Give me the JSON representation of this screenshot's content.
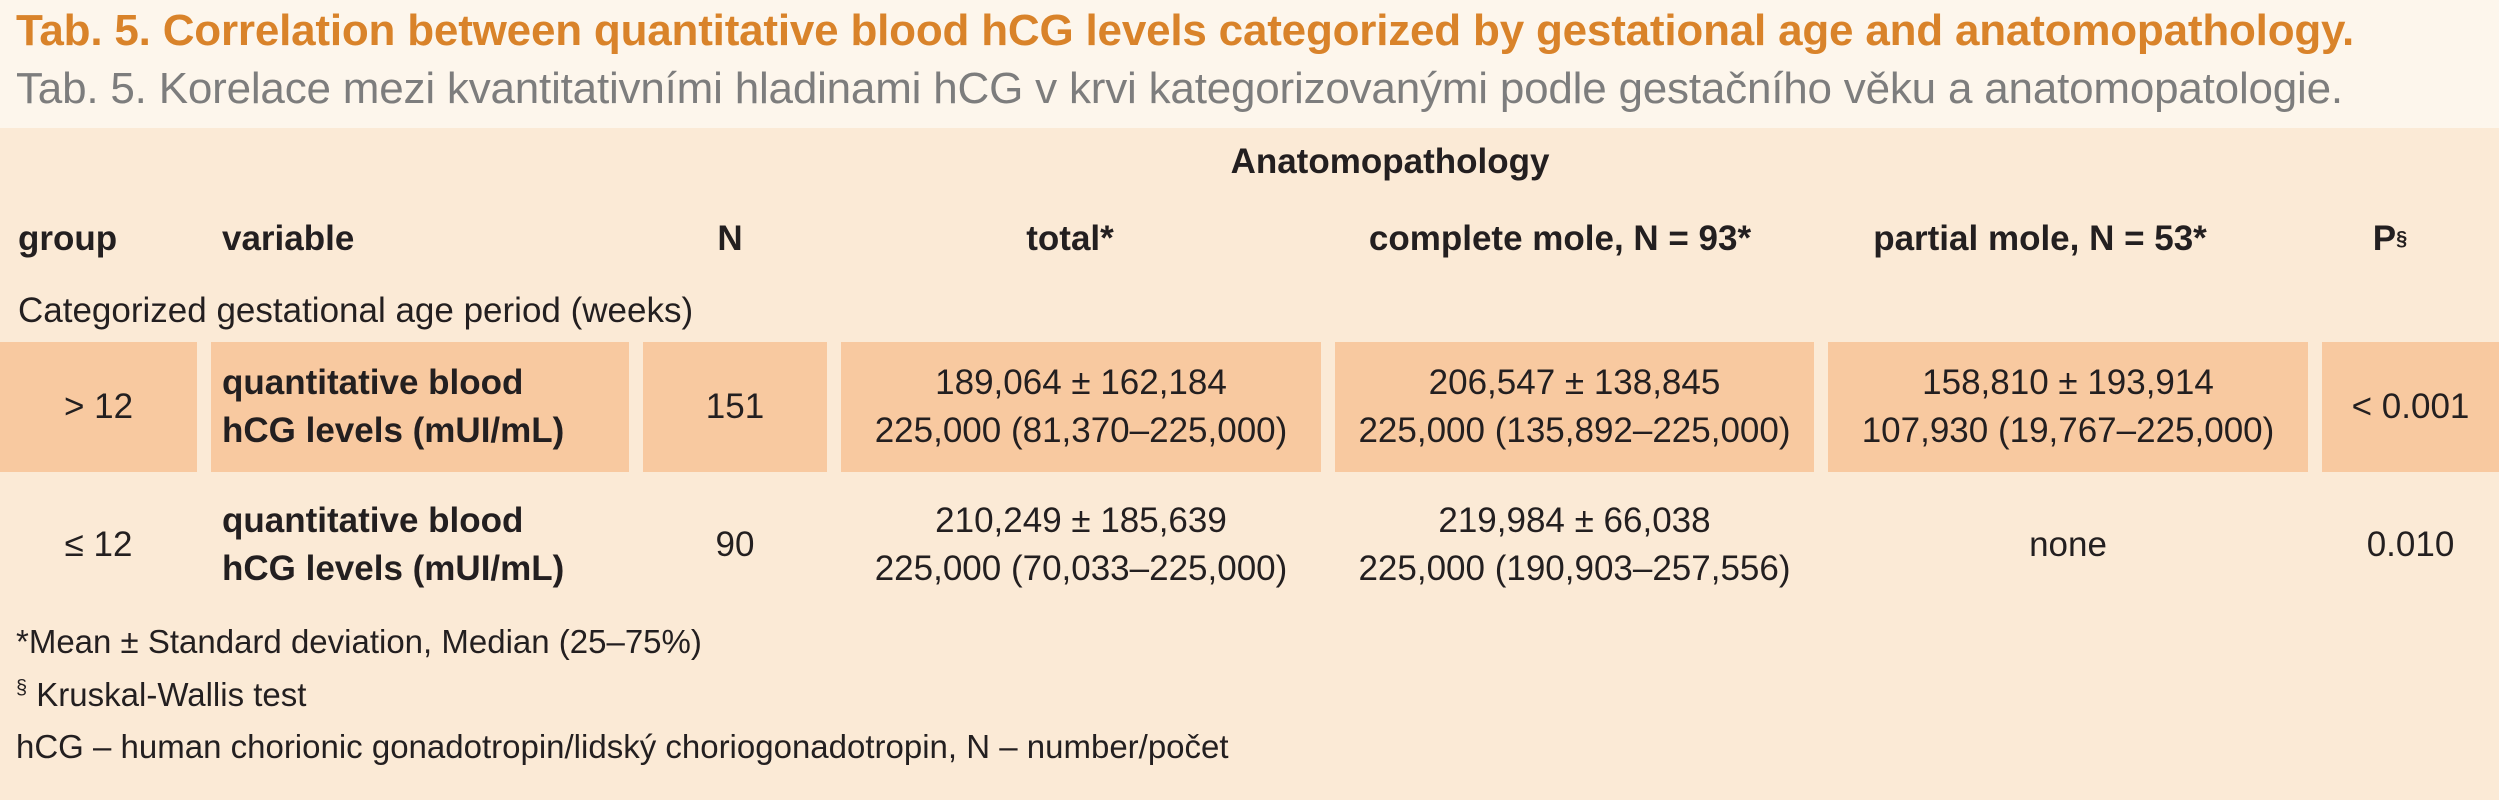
{
  "title": {
    "en": "Tab. 5. Correlation between quantitative blood hCG levels categorized by gestational age and anatomopathology.",
    "cz": "Tab. 5. Korelace mezi kvantitativními hladinami hCG v krvi kategorizovanými podle gestačního věku a anatomopatologie."
  },
  "table": {
    "super_header": "Anatomopathology",
    "headers": {
      "group": "group",
      "variable": "variable",
      "n": "N",
      "total": "total*",
      "complete": "complete mole, N = 93*",
      "partial": "partial mole, N = 53*",
      "p": "P",
      "p_sup": "§"
    },
    "section_label": "Categorized gestational age period (weeks)",
    "rows": [
      {
        "group": "> 12",
        "variable_line1": "quantitative blood",
        "variable_line2": "hCG levels (mUI/mL)",
        "n": "151",
        "total_line1": "189,064 ± 162,184",
        "total_line2": "225,000 (81,370–225,000)",
        "complete_line1": "206,547 ± 138,845",
        "complete_line2": "225,000 (135,892–225,000)",
        "partial_line1": "158,810 ± 193,914",
        "partial_line2": "107,930 (19,767–225,000)",
        "p": "< 0.001"
      },
      {
        "group": "≤ 12",
        "variable_line1": "quantitative blood",
        "variable_line2": "hCG levels (mUI/mL)",
        "n": "90",
        "total_line1": "210,249 ± 185,639",
        "total_line2": "225,000 (70,033–225,000)",
        "complete_line1": "219,984 ± 66,038",
        "complete_line2": "225,000 (190,903–257,556)",
        "partial_line1": "none",
        "partial_line2": "",
        "p": "0.010"
      }
    ]
  },
  "footnotes": {
    "note1": "*Mean ± Standard deviation, Median (25–75%)",
    "note2_sup": "§",
    "note2": " Kruskal-Wallis test",
    "note3": "hCG – human chorionic gonadotropin/lidský choriogonadotropin, N – number/počet"
  },
  "colors": {
    "title_en": "#d9832a",
    "title_cz": "#7d7d7d",
    "table_bg": "#fbead6",
    "highlight_row": "#f8c9a0"
  }
}
